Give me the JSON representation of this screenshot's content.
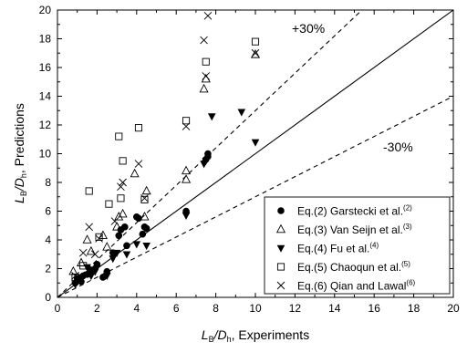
{
  "chart_data": {
    "type": "scatter",
    "xlabel": {
      "main": "L",
      "sub1": "B",
      "mid": "/D",
      "sub2": "h",
      "suffix": ", Experiments"
    },
    "ylabel": {
      "main": "L",
      "sub1": "B",
      "mid": "/D",
      "sub2": "h",
      "suffix": ", Predictions"
    },
    "xlim": [
      0,
      20
    ],
    "ylim": [
      0,
      20
    ],
    "x_ticks": [
      "0",
      "2",
      "4",
      "6",
      "8",
      "10",
      "12",
      "14",
      "16",
      "18",
      "20"
    ],
    "y_ticks": [
      "0",
      "2",
      "4",
      "6",
      "8",
      "10",
      "12",
      "14",
      "16",
      "18",
      "20"
    ],
    "grid": false,
    "legend_position": "bottom-right",
    "reference_lines": [
      {
        "label": "",
        "slope": 1.0,
        "style": "solid"
      },
      {
        "label": "+30%",
        "slope": 1.3,
        "style": "dashed"
      },
      {
        "label": "-30%",
        "slope": 0.7,
        "style": "dashed"
      }
    ],
    "annotations": [
      "+30%",
      "-30%"
    ],
    "series": [
      {
        "name": "Eq.(2) Garstecki et al.",
        "ref": "(2)",
        "marker": "filled-circle",
        "points": [
          [
            0.9,
            1.0
          ],
          [
            1.0,
            1.3
          ],
          [
            1.2,
            1.1
          ],
          [
            1.3,
            1.5
          ],
          [
            1.5,
            1.6
          ],
          [
            1.7,
            1.9
          ],
          [
            1.9,
            2.0
          ],
          [
            2.0,
            2.3
          ],
          [
            2.3,
            1.4
          ],
          [
            2.5,
            1.8
          ],
          [
            2.8,
            3.1
          ],
          [
            3.1,
            4.3
          ],
          [
            3.2,
            4.7
          ],
          [
            3.4,
            4.9
          ],
          [
            3.5,
            3.6
          ],
          [
            4.0,
            5.6
          ],
          [
            4.1,
            5.5
          ],
          [
            4.3,
            4.4
          ],
          [
            4.4,
            4.9
          ],
          [
            4.5,
            4.8
          ],
          [
            6.5,
            5.9
          ],
          [
            6.5,
            6.0
          ],
          [
            7.5,
            9.6
          ],
          [
            7.6,
            10.0
          ],
          [
            7.6,
            9.8
          ]
        ]
      },
      {
        "name": "Eq.(3) Van Seijn et al.",
        "ref": "(3)",
        "marker": "open-triangle",
        "points": [
          [
            0.8,
            1.8
          ],
          [
            1.2,
            2.4
          ],
          [
            1.5,
            4.0
          ],
          [
            1.7,
            3.2
          ],
          [
            2.3,
            4.3
          ],
          [
            2.5,
            3.5
          ],
          [
            3.0,
            4.9
          ],
          [
            3.1,
            5.6
          ],
          [
            3.3,
            5.8
          ],
          [
            3.9,
            8.6
          ],
          [
            4.4,
            5.6
          ],
          [
            4.5,
            7.4
          ],
          [
            6.5,
            8.8
          ],
          [
            6.5,
            8.2
          ],
          [
            7.4,
            14.5
          ],
          [
            7.5,
            15.2
          ],
          [
            10.0,
            16.9
          ]
        ]
      },
      {
        "name": "Eq.(4) Fu et al.",
        "ref": "(4)",
        "marker": "filled-triangle-down",
        "points": [
          [
            0.9,
            0.9
          ],
          [
            1.0,
            1.2
          ],
          [
            1.2,
            1.4
          ],
          [
            1.5,
            2.1
          ],
          [
            1.7,
            1.5
          ],
          [
            1.9,
            1.8
          ],
          [
            2.5,
            1.5
          ],
          [
            2.8,
            2.7
          ],
          [
            3.0,
            3.1
          ],
          [
            3.5,
            3.0
          ],
          [
            4.0,
            3.7
          ],
          [
            4.5,
            3.6
          ],
          [
            6.5,
            5.7
          ],
          [
            7.4,
            9.3
          ],
          [
            7.5,
            9.5
          ],
          [
            7.8,
            12.6
          ],
          [
            9.3,
            12.9
          ],
          [
            10.0,
            10.8
          ]
        ]
      },
      {
        "name": "Eq.(5) Chaoqun et al.",
        "ref": "(5)",
        "marker": "open-square",
        "points": [
          [
            0.9,
            1.4
          ],
          [
            1.3,
            2.2
          ],
          [
            1.6,
            7.4
          ],
          [
            2.1,
            4.2
          ],
          [
            2.6,
            6.5
          ],
          [
            3.1,
            11.2
          ],
          [
            3.2,
            6.9
          ],
          [
            3.3,
            9.5
          ],
          [
            4.1,
            11.8
          ],
          [
            4.4,
            6.8
          ],
          [
            6.5,
            12.3
          ],
          [
            7.5,
            16.4
          ],
          [
            10.0,
            17.8
          ]
        ]
      },
      {
        "name": "Eq.(6) Qian and Lawal",
        "ref": "(6)",
        "marker": "x-cross",
        "points": [
          [
            0.9,
            1.5
          ],
          [
            1.3,
            3.1
          ],
          [
            1.6,
            4.9
          ],
          [
            1.9,
            3.0
          ],
          [
            2.1,
            4.1
          ],
          [
            2.9,
            5.3
          ],
          [
            3.2,
            7.7
          ],
          [
            3.3,
            8.0
          ],
          [
            4.1,
            9.3
          ],
          [
            4.4,
            6.9
          ],
          [
            6.5,
            11.9
          ],
          [
            7.4,
            17.9
          ],
          [
            7.5,
            15.4
          ],
          [
            7.6,
            19.6
          ],
          [
            10.0,
            17.0
          ]
        ]
      }
    ]
  }
}
